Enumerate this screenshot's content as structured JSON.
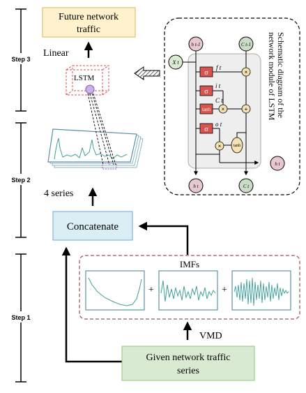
{
  "steps": {
    "step3": "Step 3",
    "step2": "Step 2",
    "step1": "Step 1"
  },
  "boxes": {
    "future_line1": "Future network",
    "future_line2": "traffic",
    "concatenate": "Concatenate",
    "given_line1": "Given network traffic",
    "given_line2": "series",
    "imfs": "IMFs"
  },
  "labels": {
    "linear": "Linear",
    "lstm": "LSTM",
    "four_series": "4 series",
    "vmd": "VMD",
    "plus": "+"
  },
  "schematic": {
    "title_line1": "Schematic diagram of the",
    "title_line2": "network module of LSTM",
    "h_prev": "h t-1",
    "c_prev": "C t-1",
    "x_t": "X t",
    "sigma": "σ",
    "tanh": "tanh",
    "times": "×",
    "plus": "+",
    "f_t": "f t",
    "i_t": "i t",
    "c_tilde": "C t",
    "o_t": "o t",
    "h_out_right": "h t",
    "h_out_bottom": "h t",
    "c_out": "C t"
  },
  "colors": {
    "future_fill": "#fff2cc",
    "future_stroke": "#d6b656",
    "concat_fill": "#dbeef4",
    "concat_stroke": "#6fa8dc",
    "given_fill": "#d9ead3",
    "given_stroke": "#93c47d",
    "imf_border": "#a05050",
    "lstm_box": "#d9534f",
    "lstm_node": "#c9b3e6",
    "cell_fill": "#eeeeee",
    "h_node": "#e8c8cf",
    "c_node": "#c9dcc4",
    "x_node": "#d9ead3",
    "wave": "#3e9f9a"
  }
}
